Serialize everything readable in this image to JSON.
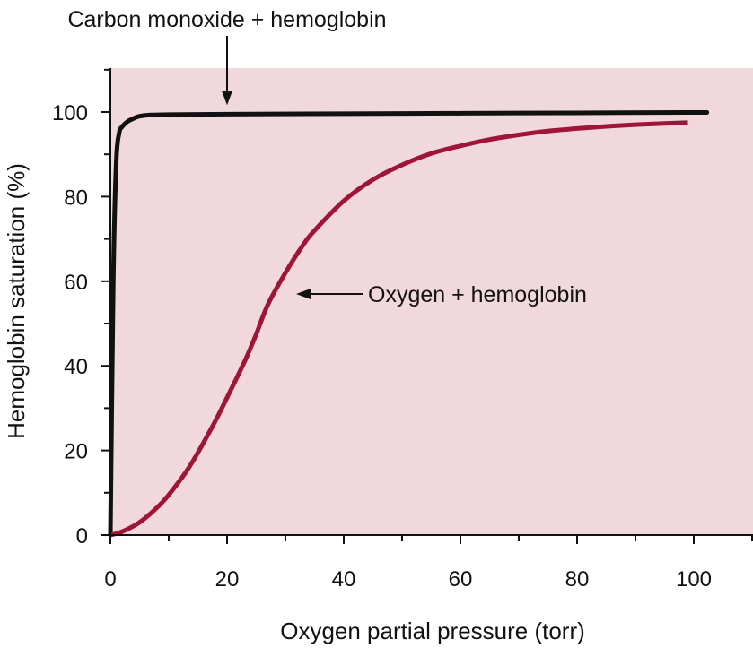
{
  "chart_data": {
    "type": "line",
    "title": "",
    "xlabel": "Oxygen partial pressure (torr)",
    "ylabel": "Hemoglobin saturation (%)",
    "xlim": [
      0,
      110
    ],
    "ylim": [
      0,
      110
    ],
    "x_ticks": [
      0,
      20,
      40,
      60,
      80,
      100
    ],
    "y_ticks": [
      0,
      20,
      40,
      60,
      80,
      100
    ],
    "grid": false,
    "background_color": "#f0d8dd",
    "series": [
      {
        "name": "Carbon monoxide + hemoglobin",
        "color": "#111111",
        "x": [
          0,
          0.5,
          1,
          1.5,
          2,
          3,
          4,
          5,
          7,
          10,
          20,
          40,
          60,
          80,
          100,
          102
        ],
        "y": [
          0,
          60,
          88,
          95,
          96.5,
          97.8,
          98.5,
          99,
          99.3,
          99.4,
          99.5,
          99.6,
          99.7,
          99.8,
          99.9,
          99.9
        ]
      },
      {
        "name": "Oxygen + hemoglobin",
        "color": "#9e1538",
        "x": [
          0,
          2,
          5,
          8,
          10,
          13,
          15,
          18,
          20,
          23,
          25,
          27,
          30,
          33,
          35,
          40,
          45,
          50,
          55,
          60,
          65,
          70,
          75,
          80,
          85,
          90,
          95,
          99
        ],
        "y": [
          0,
          0.8,
          3,
          6.5,
          9.5,
          15,
          19.5,
          27,
          32.5,
          41,
          47.5,
          54.5,
          62,
          68.5,
          72,
          79,
          84,
          87.5,
          90.2,
          92,
          93.5,
          94.6,
          95.5,
          96.1,
          96.6,
          97,
          97.3,
          97.5
        ]
      }
    ],
    "annotations": [
      {
        "text": "Carbon monoxide + hemoglobin",
        "series_index": 0,
        "point_x": 20,
        "point_y": 99.5,
        "arrow": "down"
      },
      {
        "text": "Oxygen + hemoglobin",
        "series_index": 1,
        "point_x": 30,
        "point_y": 57,
        "arrow": "left"
      }
    ]
  }
}
